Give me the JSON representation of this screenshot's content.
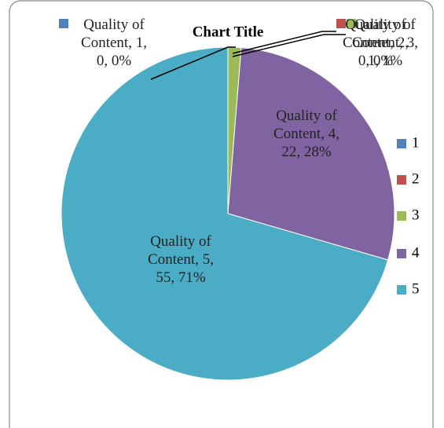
{
  "chart_data": {
    "type": "pie",
    "title": "Chart Title",
    "categories": [
      "1",
      "2",
      "3",
      "4",
      "5"
    ],
    "values": [
      0,
      0,
      1,
      22,
      55
    ],
    "value_labels": [
      "Quality of Content, 1, 0, 0%",
      "Quality of Content, 2, 0, 0%",
      "Quality of Content, 3, 1, 1%",
      "Quality of Content, 4, 22, 28%",
      "Quality of Content, 5, 55, 71%"
    ],
    "colors": [
      "#4f81bd",
      "#c0504d",
      "#9bbb59",
      "#8064a2",
      "#4bacc6"
    ],
    "legend": "right"
  }
}
